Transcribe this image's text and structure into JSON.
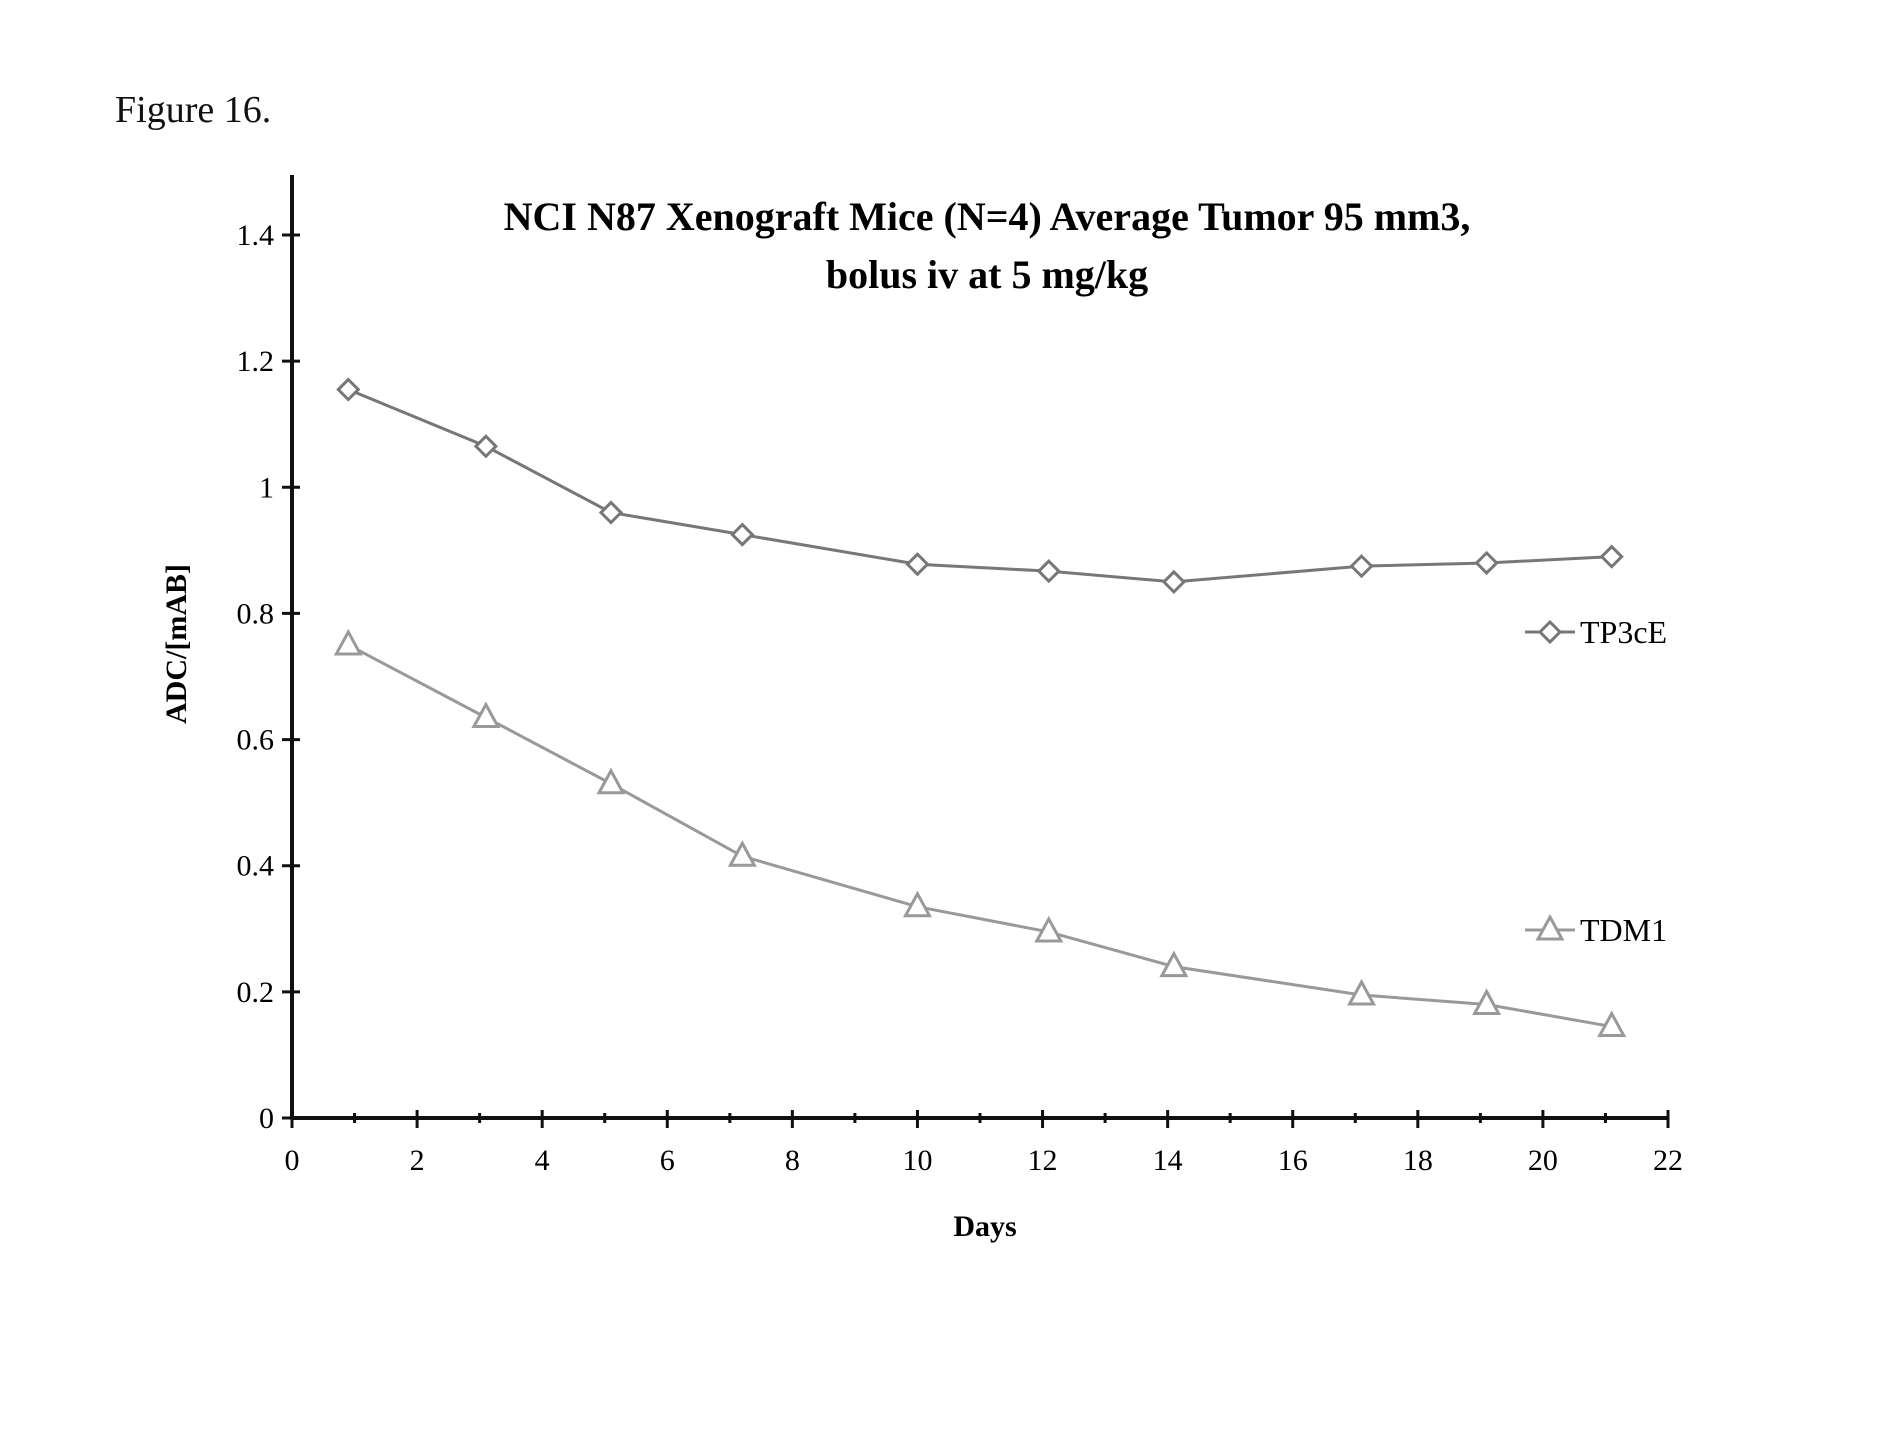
{
  "figure_label": "Figure 16.",
  "chart_data": {
    "type": "line",
    "title": "NCI N87 Xenograft Mice (N=4) Average Tumor 95 mm3,",
    "subtitle": "bolus iv at 5 mg/kg",
    "xlabel": "Days",
    "ylabel": "ADC/[mAB]",
    "xlim": [
      0,
      22
    ],
    "ylim": [
      0,
      1.4
    ],
    "xticks": [
      "0",
      "2",
      "4",
      "6",
      "8",
      "10",
      "12",
      "14",
      "16",
      "18",
      "20",
      "22"
    ],
    "yticks": [
      "0",
      "0.2",
      "0.4",
      "0.6",
      "0.8",
      "1",
      "1.2",
      "1.4"
    ],
    "grid": false,
    "legend_position": "right",
    "series": [
      {
        "name": "TP3cE",
        "marker": "diamond",
        "color": "#777777",
        "x": [
          0.9,
          3.1,
          5.1,
          7.2,
          10.0,
          12.1,
          14.1,
          17.1,
          19.1,
          21.1
        ],
        "y": [
          1.155,
          1.065,
          0.96,
          0.925,
          0.878,
          0.867,
          0.85,
          0.875,
          0.88,
          0.89
        ]
      },
      {
        "name": "TDM1",
        "marker": "triangle",
        "color": "#999999",
        "x": [
          0.9,
          3.1,
          5.1,
          7.2,
          10.0,
          12.1,
          14.1,
          17.1,
          19.1,
          21.1
        ],
        "y": [
          0.75,
          0.635,
          0.53,
          0.415,
          0.335,
          0.295,
          0.24,
          0.195,
          0.18,
          0.145
        ]
      }
    ]
  }
}
